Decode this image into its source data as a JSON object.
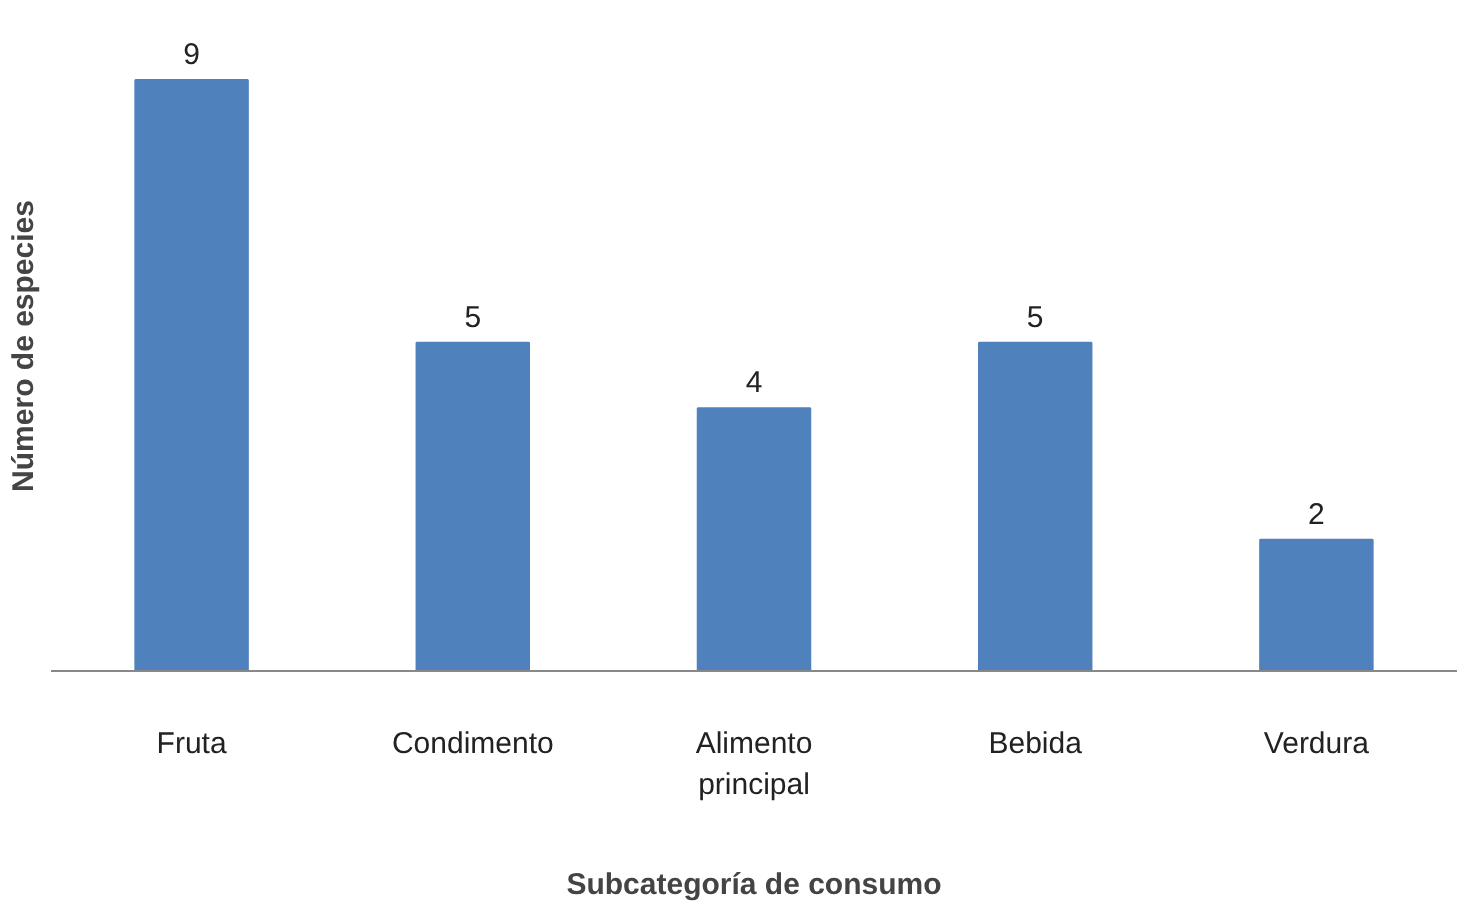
{
  "chart_data": {
    "type": "bar",
    "xlabel": "Subcategoría de consumo",
    "ylabel": "Número de especies",
    "categories": [
      "Fruta",
      "Condimento",
      "Alimento principal",
      "Bebida",
      "Verdura"
    ],
    "values": [
      9,
      5,
      4,
      5,
      2
    ],
    "color": "#4f81bd",
    "data_labels": true
  }
}
